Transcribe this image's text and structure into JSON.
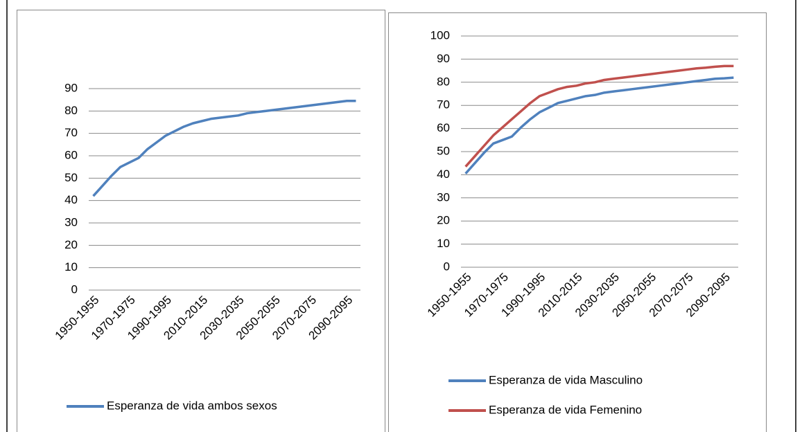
{
  "chart_data": [
    {
      "type": "line",
      "categories": [
        "1950-1955",
        null,
        null,
        null,
        "1970-1975",
        null,
        null,
        null,
        "1990-1995",
        null,
        null,
        null,
        "2010-2015",
        null,
        null,
        null,
        "2030-2035",
        null,
        null,
        null,
        "2050-2055",
        null,
        null,
        null,
        "2070-2075",
        null,
        null,
        null,
        "2090-2095",
        null
      ],
      "series": [
        {
          "name": "Esperanza de vida ambos sexos",
          "color": "#4f81bd",
          "values": [
            42,
            46.5,
            51,
            55,
            57,
            59,
            63,
            66,
            69,
            71,
            73,
            74.5,
            75.5,
            76.5,
            77,
            77.5,
            78,
            79,
            79.5,
            80,
            80.5,
            81,
            81.5,
            82,
            82.5,
            83,
            83.5,
            84,
            84.5,
            84.5
          ]
        }
      ],
      "ylim": [
        0,
        90
      ],
      "yticks": [
        0,
        10,
        20,
        30,
        40,
        50,
        60,
        70,
        80,
        90
      ],
      "grid": true,
      "legend": "bottom"
    },
    {
      "type": "line",
      "categories": [
        "1950-1955",
        null,
        null,
        null,
        "1970-1975",
        null,
        null,
        null,
        "1990-1995",
        null,
        null,
        null,
        "2010-2015",
        null,
        null,
        null,
        "2030-2035",
        null,
        null,
        null,
        "2050-2055",
        null,
        null,
        null,
        "2070-2075",
        null,
        null,
        null,
        "2090-2095",
        null
      ],
      "series": [
        {
          "name": "Esperanza de vida Masculino",
          "color": "#4f81bd",
          "values": [
            40.5,
            45,
            49.5,
            53.5,
            55,
            56.5,
            60.5,
            64,
            67,
            69,
            71,
            72,
            73,
            74,
            74.5,
            75.5,
            76,
            76.5,
            77,
            77.5,
            78,
            78.5,
            79,
            79.5,
            80,
            80.5,
            81,
            81.5,
            81.7,
            82
          ]
        },
        {
          "name": "Esperanza de vida Femenino",
          "color": "#c0504d",
          "values": [
            43.5,
            48,
            52.5,
            57,
            60.5,
            64,
            67.5,
            71,
            74,
            75.5,
            77,
            78,
            78.5,
            79.5,
            80,
            81,
            81.5,
            82,
            82.5,
            83,
            83.5,
            84,
            84.5,
            85,
            85.5,
            86,
            86.3,
            86.7,
            87,
            87
          ]
        }
      ],
      "ylim": [
        0,
        100
      ],
      "yticks": [
        0,
        10,
        20,
        30,
        40,
        50,
        60,
        70,
        80,
        90,
        100
      ],
      "grid": true,
      "legend": "bottom"
    }
  ]
}
